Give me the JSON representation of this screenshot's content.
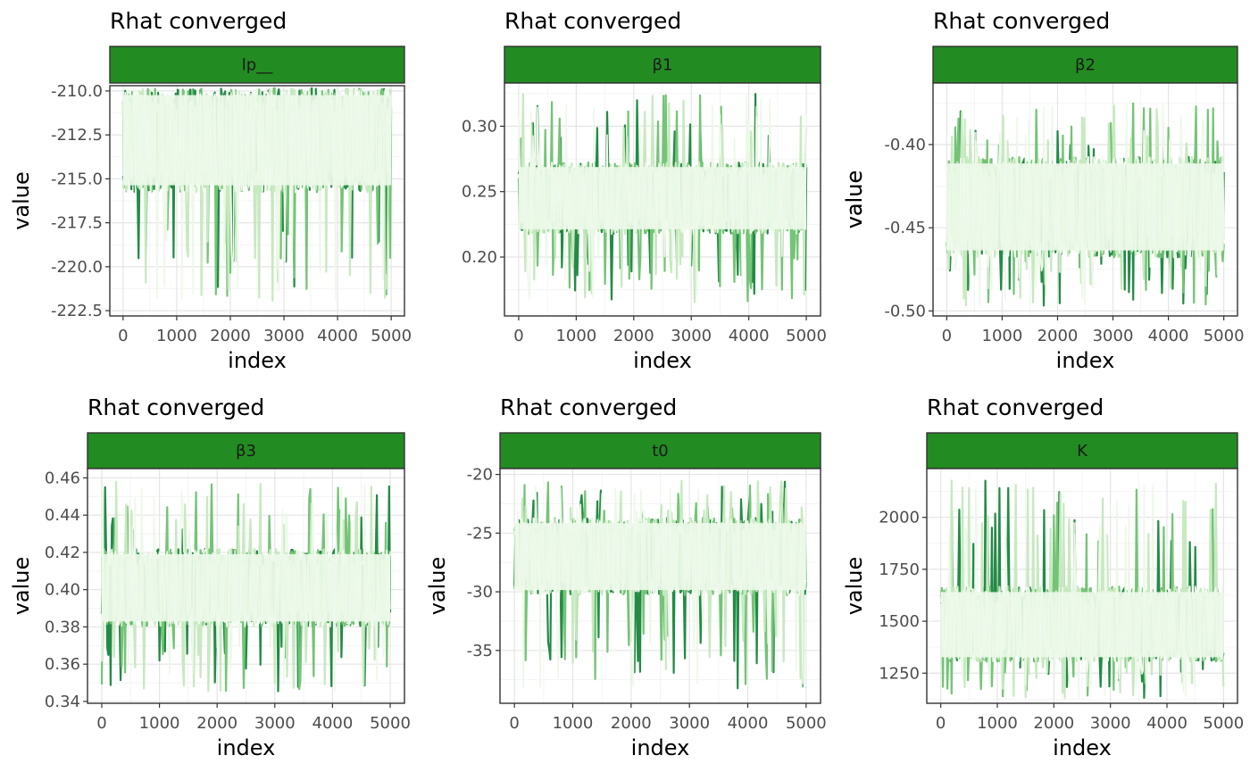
{
  "chart_data": [
    {
      "type": "line",
      "title": "Rhat converged",
      "strip_label": "lp__",
      "xlabel": "index",
      "ylabel": "value",
      "x_range": [
        0,
        5000
      ],
      "x_ticks": [
        0,
        1000,
        2000,
        3000,
        4000,
        5000
      ],
      "y_ticks": [
        -210.0,
        -212.5,
        -215.0,
        -217.5,
        -220.0,
        -222.5
      ],
      "y_tick_labels": [
        "-210.0",
        "-212.5",
        "-215.0",
        "-217.5",
        "-220.0",
        "-222.5"
      ],
      "ylim": [
        -222.8,
        -209.7
      ],
      "trace_center": -212.8,
      "trace_band": [
        -210.1,
        -215.5
      ],
      "trace_extremes": [
        -210.0,
        -222.0
      ],
      "series_colors": [
        "#238b45",
        "#74c476",
        "#c7e9c0",
        "#edf8e9"
      ]
    },
    {
      "type": "line",
      "title": "Rhat converged",
      "strip_label": "β1",
      "xlabel": "index",
      "ylabel": "value",
      "x_range": [
        0,
        5000
      ],
      "x_ticks": [
        0,
        1000,
        2000,
        3000,
        4000,
        5000
      ],
      "y_ticks": [
        0.3,
        0.25,
        0.2
      ],
      "y_tick_labels": [
        "0.30",
        "0.25",
        "0.20"
      ],
      "ylim": [
        0.155,
        0.333
      ],
      "trace_center": 0.245,
      "trace_band": [
        0.22,
        0.27
      ],
      "trace_extremes": [
        0.325,
        0.165
      ],
      "series_colors": [
        "#238b45",
        "#74c476",
        "#c7e9c0",
        "#edf8e9"
      ]
    },
    {
      "type": "line",
      "title": "Rhat converged",
      "strip_label": "β2",
      "xlabel": "index",
      "ylabel": "value",
      "x_range": [
        0,
        5000
      ],
      "x_ticks": [
        0,
        1000,
        2000,
        3000,
        4000,
        5000
      ],
      "y_ticks": [
        -0.4,
        -0.45,
        -0.5
      ],
      "y_tick_labels": [
        "-0.40",
        "-0.45",
        "-0.50"
      ],
      "ylim": [
        -0.503,
        -0.363
      ],
      "trace_center": -0.437,
      "trace_band": [
        -0.41,
        -0.465
      ],
      "trace_extremes": [
        -0.375,
        -0.497
      ],
      "series_colors": [
        "#238b45",
        "#74c476",
        "#c7e9c0",
        "#edf8e9"
      ]
    },
    {
      "type": "line",
      "title": "Rhat converged",
      "strip_label": "β3",
      "xlabel": "index",
      "ylabel": "value",
      "x_range": [
        0,
        5000
      ],
      "x_ticks": [
        0,
        1000,
        2000,
        3000,
        4000,
        5000
      ],
      "y_ticks": [
        0.46,
        0.44,
        0.42,
        0.4,
        0.38,
        0.36,
        0.34
      ],
      "y_tick_labels": [
        "0.46",
        "0.44",
        "0.42",
        "0.40",
        "0.38",
        "0.36",
        "0.34"
      ],
      "ylim": [
        0.339,
        0.465
      ],
      "trace_center": 0.401,
      "trace_band": [
        0.382,
        0.42
      ],
      "trace_extremes": [
        0.458,
        0.344
      ],
      "series_colors": [
        "#238b45",
        "#74c476",
        "#c7e9c0",
        "#edf8e9"
      ]
    },
    {
      "type": "line",
      "title": "Rhat converged",
      "strip_label": "t0",
      "xlabel": "index",
      "ylabel": "value",
      "x_range": [
        0,
        5000
      ],
      "x_ticks": [
        0,
        1000,
        2000,
        3000,
        4000,
        5000
      ],
      "y_ticks": [
        -20,
        -25,
        -30,
        -35
      ],
      "y_tick_labels": [
        "-20",
        "-25",
        "-30",
        "-35"
      ],
      "ylim": [
        -39.5,
        -19.5
      ],
      "trace_center": -27.0,
      "trace_band": [
        -24.0,
        -30.0
      ],
      "trace_extremes": [
        -20.5,
        -38.5
      ],
      "series_colors": [
        "#238b45",
        "#74c476",
        "#c7e9c0",
        "#edf8e9"
      ]
    },
    {
      "type": "line",
      "title": "Rhat converged",
      "strip_label": "K",
      "xlabel": "index",
      "ylabel": "value",
      "x_range": [
        0,
        5000
      ],
      "x_ticks": [
        0,
        1000,
        2000,
        3000,
        4000,
        5000
      ],
      "y_ticks": [
        2000,
        1750,
        1500,
        1250
      ],
      "y_tick_labels": [
        "2000",
        "1750",
        "1500",
        "1250"
      ],
      "ylim": [
        1105,
        2235
      ],
      "trace_center": 1460,
      "trace_band": [
        1320,
        1650
      ],
      "trace_extremes": [
        2180,
        1130
      ],
      "series_colors": [
        "#238b45",
        "#74c476",
        "#c7e9c0",
        "#edf8e9"
      ]
    }
  ]
}
